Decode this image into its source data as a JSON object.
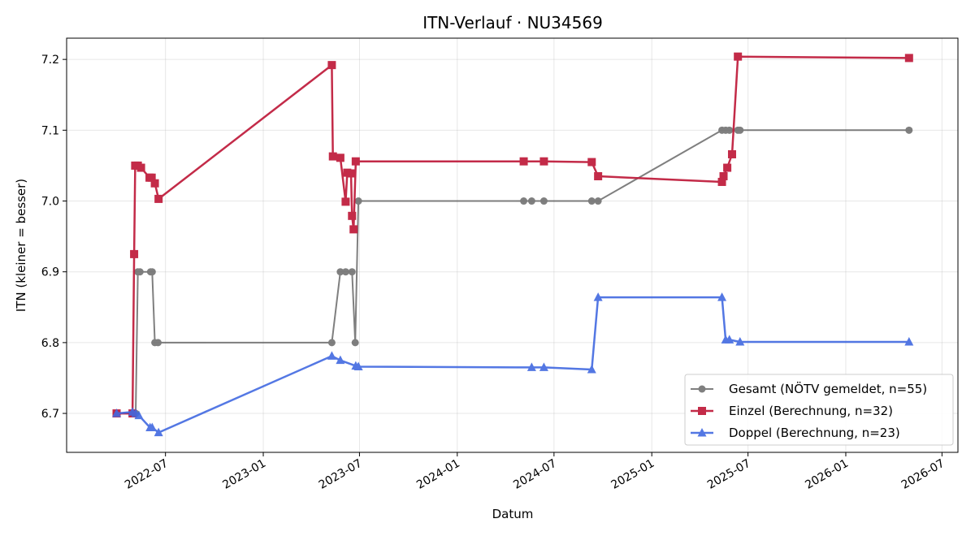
{
  "chart_data": {
    "type": "line",
    "title": "ITN-Verlauf · NU34569",
    "xlabel": "Datum",
    "ylabel": "ITN  (kleiner = besser)",
    "xlim": [
      "2021-12-27",
      "2026-07-31"
    ],
    "ylim": [
      6.645,
      7.23
    ],
    "x_ticks": [
      "2022-07-01",
      "2023-01-01",
      "2023-07-01",
      "2024-01-01",
      "2024-07-01",
      "2025-01-01",
      "2025-07-01",
      "2026-01-01",
      "2026-07-01"
    ],
    "x_tick_labels": [
      "2022-07",
      "2023-01",
      "2023-07",
      "2024-01",
      "2024-07",
      "2025-01",
      "2025-07",
      "2026-01",
      "2026-07"
    ],
    "y_ticks": [
      6.7,
      6.8,
      6.9,
      7.0,
      7.1,
      7.2
    ],
    "y_tick_labels": [
      "6.7",
      "6.8",
      "6.9",
      "7.0",
      "7.1",
      "7.2"
    ],
    "grid": true,
    "legend_position": "bottom-right",
    "series": [
      {
        "name": "Gesamt (NÖTV gemeldet, n=55)",
        "color": "#555555",
        "marker": "circle",
        "points": [
          [
            "2022-03-31",
            6.7
          ],
          [
            "2022-04-30",
            6.7
          ],
          [
            "2022-05-06",
            6.7
          ],
          [
            "2022-05-10",
            6.9
          ],
          [
            "2022-05-14",
            6.9
          ],
          [
            "2022-06-03",
            6.9
          ],
          [
            "2022-06-06",
            6.9
          ],
          [
            "2022-06-11",
            6.8
          ],
          [
            "2022-06-17",
            6.8
          ],
          [
            "2023-05-10",
            6.8
          ],
          [
            "2023-05-26",
            6.9
          ],
          [
            "2023-06-05",
            6.9
          ],
          [
            "2023-06-17",
            6.9
          ],
          [
            "2023-06-23",
            6.8
          ],
          [
            "2023-06-29",
            7.0
          ],
          [
            "2024-05-05",
            7.0
          ],
          [
            "2024-05-20",
            7.0
          ],
          [
            "2024-06-12",
            7.0
          ],
          [
            "2024-09-10",
            7.0
          ],
          [
            "2024-09-22",
            7.0
          ],
          [
            "2025-05-13",
            7.1
          ],
          [
            "2025-05-20",
            7.1
          ],
          [
            "2025-05-27",
            7.1
          ],
          [
            "2025-06-12",
            7.1
          ],
          [
            "2025-06-16",
            7.1
          ],
          [
            "2026-04-30",
            7.1
          ]
        ]
      },
      {
        "name": "Einzel (Berechnung, n=32)",
        "color": "#c0203f",
        "marker": "square",
        "points": [
          [
            "2022-03-31",
            6.7
          ],
          [
            "2022-04-30",
            6.7
          ],
          [
            "2022-05-03",
            6.925
          ],
          [
            "2022-05-05",
            7.05
          ],
          [
            "2022-05-10",
            7.05
          ],
          [
            "2022-05-16",
            7.047
          ],
          [
            "2022-06-01",
            7.033
          ],
          [
            "2022-06-05",
            7.033
          ],
          [
            "2022-06-11",
            7.025
          ],
          [
            "2022-06-18",
            7.003
          ],
          [
            "2023-05-10",
            7.192
          ],
          [
            "2023-05-12",
            7.063
          ],
          [
            "2023-05-26",
            7.061
          ],
          [
            "2023-06-05",
            6.999
          ],
          [
            "2023-06-08",
            7.04
          ],
          [
            "2023-06-15",
            7.039
          ],
          [
            "2023-06-17",
            6.979
          ],
          [
            "2023-06-20",
            6.96
          ],
          [
            "2023-06-24",
            7.056
          ],
          [
            "2024-05-05",
            7.056
          ],
          [
            "2024-06-12",
            7.056
          ],
          [
            "2024-09-10",
            7.055
          ],
          [
            "2024-09-22",
            7.035
          ],
          [
            "2025-05-13",
            7.027
          ],
          [
            "2025-05-16",
            7.035
          ],
          [
            "2025-05-23",
            7.047
          ],
          [
            "2025-06-01",
            7.066
          ],
          [
            "2025-06-12",
            7.204
          ],
          [
            "2026-04-30",
            7.202
          ]
        ]
      },
      {
        "name": "Doppel (Berechnung, n=23)",
        "color": "#4169e1",
        "marker": "triangle",
        "points": [
          [
            "2022-03-31",
            6.7
          ],
          [
            "2022-04-30",
            6.702
          ],
          [
            "2022-05-06",
            6.7
          ],
          [
            "2022-05-12",
            6.697
          ],
          [
            "2022-06-02",
            6.68
          ],
          [
            "2022-06-06",
            6.68
          ],
          [
            "2022-06-18",
            6.673
          ],
          [
            "2023-05-10",
            6.781
          ],
          [
            "2023-05-26",
            6.775
          ],
          [
            "2023-06-24",
            6.767
          ],
          [
            "2023-06-29",
            6.766
          ],
          [
            "2024-05-20",
            6.765
          ],
          [
            "2024-06-12",
            6.765
          ],
          [
            "2024-09-10",
            6.762
          ],
          [
            "2024-09-22",
            6.864
          ],
          [
            "2025-05-13",
            6.864
          ],
          [
            "2025-05-20",
            6.804
          ],
          [
            "2025-05-27",
            6.804
          ],
          [
            "2025-06-16",
            6.801
          ],
          [
            "2026-04-30",
            6.801
          ]
        ]
      }
    ]
  }
}
